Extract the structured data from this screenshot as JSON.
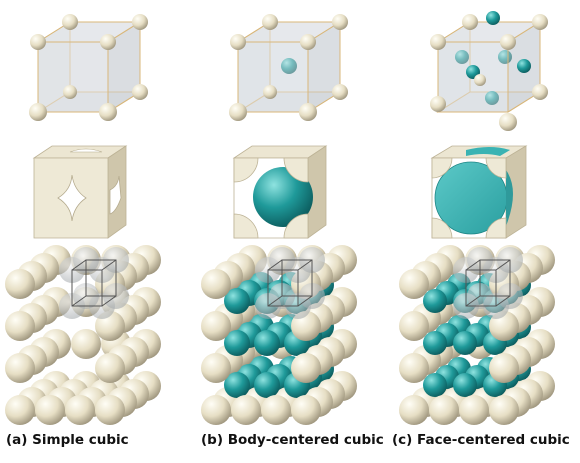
{
  "captions": {
    "simple": "(a) Simple cubic",
    "bcc": "(b) Body-centered cubic",
    "fcc": "(c) Face-centered cubic"
  },
  "colors": {
    "corner_atom": "#ddd5b8",
    "center_atom": "#1f9a9a",
    "cube_edge": "#d9b77a",
    "cube_face": "#d6dadf"
  }
}
